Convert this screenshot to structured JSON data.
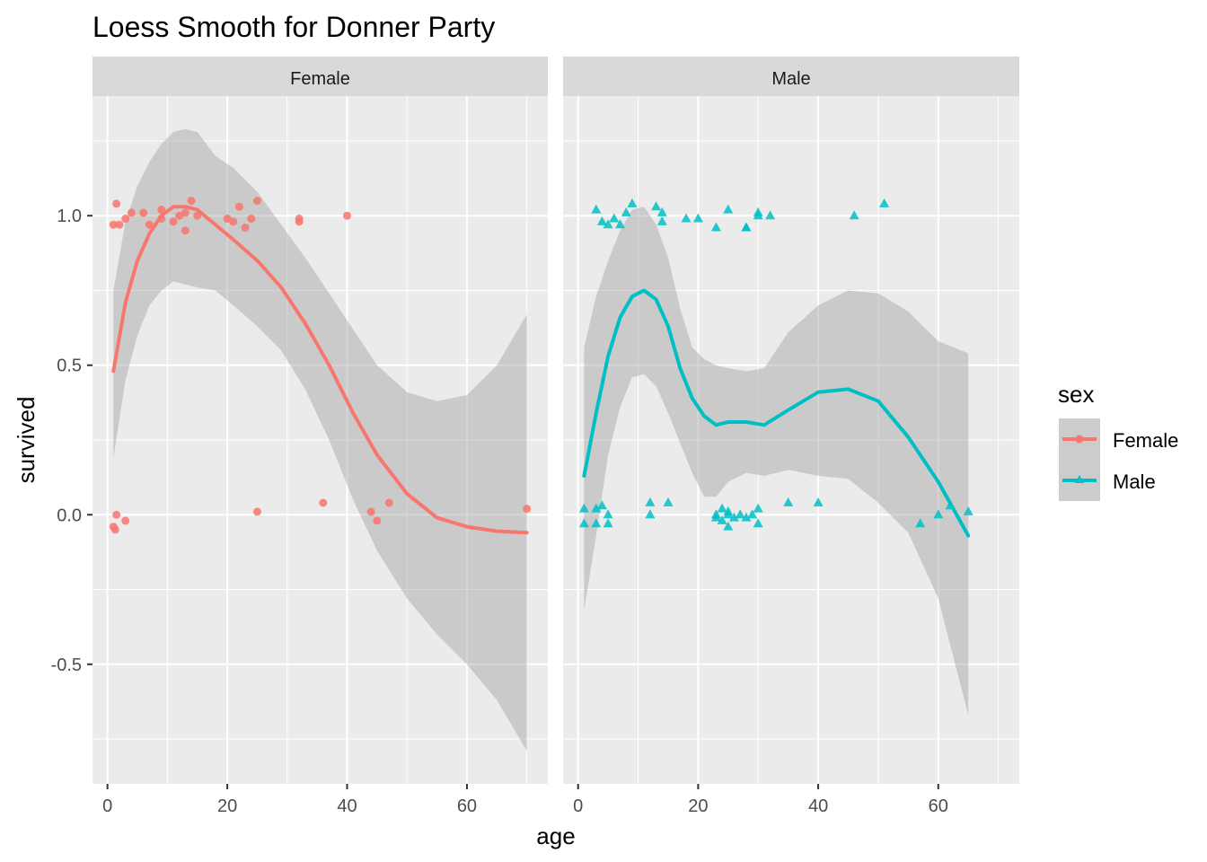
{
  "chart_data": {
    "type": "scatter",
    "title": "Loess Smooth for Donner Party",
    "xlabel": "age",
    "ylabel": "survived",
    "xlim": [
      -2.5,
      73.5
    ],
    "ylim": [
      -0.9,
      1.4
    ],
    "x_ticks": [
      0,
      20,
      40,
      60
    ],
    "y_ticks": [
      -0.5,
      0.0,
      0.5,
      1.0
    ],
    "y_tick_labels": [
      "-0.5",
      "0.0",
      "0.5",
      "1.0"
    ],
    "grid": true,
    "legend": {
      "title": "sex",
      "position": "right",
      "entries": [
        {
          "label": "Female",
          "color": "#F8766D",
          "shape": "circle"
        },
        {
          "label": "Male",
          "color": "#00BFC4",
          "shape": "triangle"
        }
      ]
    },
    "panels": [
      {
        "label": "Female",
        "color": "#F8766D",
        "shape": "circle",
        "points": [
          [
            1,
            0.97
          ],
          [
            1.5,
            1.04
          ],
          [
            2,
            0.97
          ],
          [
            3,
            0.99
          ],
          [
            4,
            1.01
          ],
          [
            6,
            1.01
          ],
          [
            7,
            0.97
          ],
          [
            9,
            1.02
          ],
          [
            9,
            0.99
          ],
          [
            11,
            0.98
          ],
          [
            12,
            1.0
          ],
          [
            13,
            1.01
          ],
          [
            13,
            0.95
          ],
          [
            14,
            1.05
          ],
          [
            15,
            1.0
          ],
          [
            20,
            0.99
          ],
          [
            21,
            0.98
          ],
          [
            22,
            1.03
          ],
          [
            23,
            0.96
          ],
          [
            24,
            0.99
          ],
          [
            25,
            1.05
          ],
          [
            32,
            0.98
          ],
          [
            32,
            0.99
          ],
          [
            40,
            1.0
          ],
          [
            1,
            -0.04
          ],
          [
            1.5,
            0.0
          ],
          [
            1.3,
            -0.05
          ],
          [
            3,
            -0.02
          ],
          [
            25,
            0.01
          ],
          [
            36,
            0.04
          ],
          [
            44,
            0.01
          ],
          [
            45,
            -0.02
          ],
          [
            47,
            0.04
          ],
          [
            70,
            0.02
          ]
        ],
        "smooth": {
          "x": [
            1,
            3,
            5,
            7,
            9,
            11,
            13,
            15,
            18,
            21,
            25,
            29,
            33,
            37,
            41,
            45,
            50,
            55,
            60,
            65,
            70
          ],
          "y": [
            0.48,
            0.71,
            0.85,
            0.94,
            1.0,
            1.03,
            1.03,
            1.02,
            0.97,
            0.92,
            0.85,
            0.76,
            0.64,
            0.5,
            0.34,
            0.2,
            0.07,
            -0.01,
            -0.04,
            -0.055,
            -0.06
          ],
          "lower": [
            0.19,
            0.45,
            0.6,
            0.7,
            0.75,
            0.78,
            0.77,
            0.76,
            0.75,
            0.7,
            0.63,
            0.55,
            0.42,
            0.25,
            0.05,
            -0.12,
            -0.28,
            -0.4,
            -0.5,
            -0.62,
            -0.79
          ],
          "upper": [
            0.75,
            0.98,
            1.1,
            1.18,
            1.24,
            1.28,
            1.29,
            1.28,
            1.2,
            1.16,
            1.08,
            0.97,
            0.86,
            0.74,
            0.62,
            0.5,
            0.41,
            0.38,
            0.4,
            0.5,
            0.67
          ]
        }
      },
      {
        "label": "Male",
        "color": "#00BFC4",
        "shape": "triangle",
        "points": [
          [
            3,
            1.02
          ],
          [
            4,
            0.98
          ],
          [
            5,
            0.97
          ],
          [
            6,
            0.99
          ],
          [
            7,
            0.97
          ],
          [
            8,
            1.01
          ],
          [
            9,
            1.04
          ],
          [
            13,
            1.03
          ],
          [
            14,
            1.01
          ],
          [
            14,
            0.98
          ],
          [
            18,
            0.99
          ],
          [
            20,
            0.99
          ],
          [
            23,
            0.96
          ],
          [
            25,
            1.02
          ],
          [
            28,
            0.96
          ],
          [
            28,
            0.96
          ],
          [
            30,
            1.01
          ],
          [
            30,
            1.0
          ],
          [
            32,
            1.0
          ],
          [
            46,
            1.0
          ],
          [
            51,
            1.04
          ],
          [
            1,
            0.02
          ],
          [
            1,
            -0.03
          ],
          [
            3,
            0.02
          ],
          [
            3,
            -0.03
          ],
          [
            4,
            0.03
          ],
          [
            5,
            0.0
          ],
          [
            5,
            -0.03
          ],
          [
            12,
            0.04
          ],
          [
            12,
            0.0
          ],
          [
            15,
            0.04
          ],
          [
            23,
            -0.01
          ],
          [
            23,
            0.0
          ],
          [
            24,
            0.02
          ],
          [
            24,
            -0.02
          ],
          [
            25,
            -0.04
          ],
          [
            25,
            0.0
          ],
          [
            25,
            0.01
          ],
          [
            26,
            -0.01
          ],
          [
            27,
            0.0
          ],
          [
            28,
            -0.01
          ],
          [
            29,
            0.0
          ],
          [
            30,
            -0.03
          ],
          [
            30,
            0.02
          ],
          [
            35,
            0.04
          ],
          [
            40,
            0.04
          ],
          [
            57,
            -0.03
          ],
          [
            60,
            0.0
          ],
          [
            62,
            0.03
          ],
          [
            65,
            0.01
          ]
        ],
        "smooth": {
          "x": [
            1,
            3,
            5,
            7,
            9,
            11,
            13,
            15,
            17,
            19,
            21,
            23,
            25,
            28,
            31,
            35,
            40,
            45,
            50,
            55,
            60,
            65
          ],
          "y": [
            0.13,
            0.34,
            0.53,
            0.66,
            0.73,
            0.75,
            0.72,
            0.63,
            0.49,
            0.39,
            0.33,
            0.3,
            0.31,
            0.31,
            0.3,
            0.35,
            0.41,
            0.42,
            0.38,
            0.26,
            0.11,
            -0.07
          ],
          "lower": [
            -0.32,
            -0.07,
            0.2,
            0.36,
            0.46,
            0.47,
            0.43,
            0.34,
            0.24,
            0.14,
            0.06,
            0.06,
            0.11,
            0.14,
            0.13,
            0.15,
            0.13,
            0.12,
            0.04,
            -0.06,
            -0.28,
            -0.67
          ],
          "upper": [
            0.56,
            0.73,
            0.85,
            0.95,
            1.02,
            1.03,
            0.97,
            0.86,
            0.69,
            0.56,
            0.52,
            0.5,
            0.49,
            0.48,
            0.49,
            0.61,
            0.7,
            0.75,
            0.74,
            0.68,
            0.58,
            0.54
          ]
        }
      }
    ]
  }
}
